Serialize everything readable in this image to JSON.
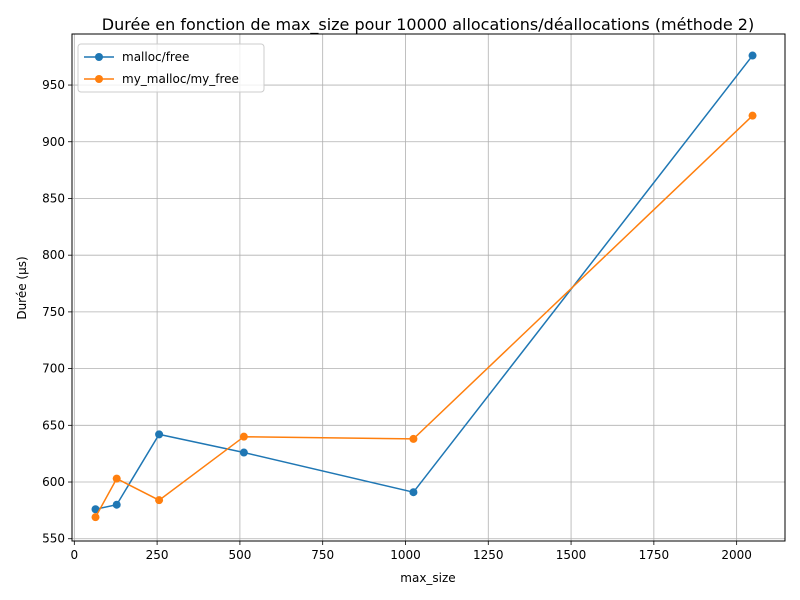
{
  "chart_data": {
    "type": "line",
    "title": "Durée en fonction de max_size pour 10000 allocations/déallocations (méthode 2)",
    "xlabel": "max_size",
    "ylabel": "Durée (µs)",
    "xlim": [
      -7,
      2146
    ],
    "ylim": [
      548,
      995
    ],
    "xticks": [
      0,
      250,
      500,
      750,
      1000,
      1250,
      1500,
      1750,
      2000
    ],
    "yticks": [
      550,
      600,
      650,
      700,
      750,
      800,
      850,
      900,
      950
    ],
    "grid": true,
    "legend_position": "top-left",
    "series": [
      {
        "name": "malloc/free",
        "color": "#1f77b4",
        "x": [
          64,
          128,
          256,
          512,
          1024,
          2048
        ],
        "y": [
          576,
          580,
          642,
          626,
          591,
          976
        ]
      },
      {
        "name": "my_malloc/my_free",
        "color": "#ff7f0e",
        "x": [
          64,
          128,
          256,
          512,
          1024,
          2048
        ],
        "y": [
          569,
          603,
          584,
          640,
          638,
          923
        ]
      }
    ]
  }
}
